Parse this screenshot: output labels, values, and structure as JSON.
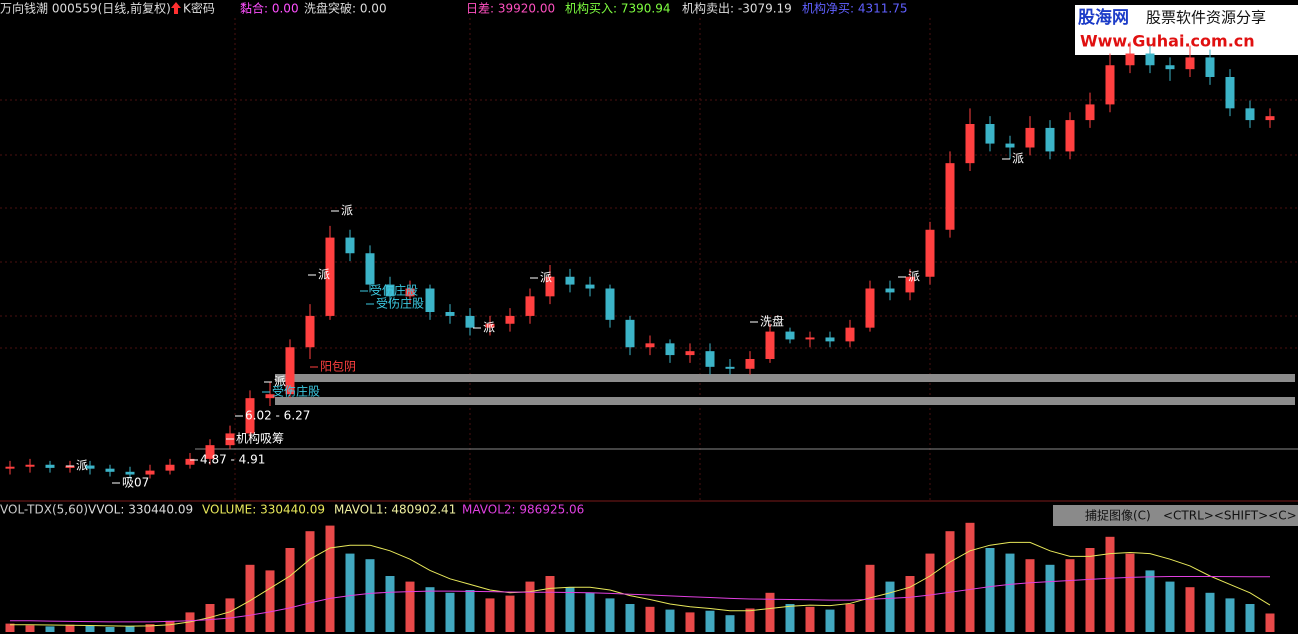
{
  "header": {
    "stock": "万向钱潮 000559(日线,前复权)",
    "kcode": "K密码",
    "indicators": [
      "黏合: 0.00",
      "洗盘突破: 0.00",
      "日差: 39920.00",
      "机构买入: 7390.94",
      "机构卖出: -3079.19",
      "机构净买: 4311.75"
    ]
  },
  "watermark": {
    "site": "股海网",
    "slogan": "股票软件资源分享",
    "url": "Www.Guhai.com.cn"
  },
  "capture_button": {
    "label": "捕捉图像(C)",
    "shortcut": "<CTRL><SHIFT><C>"
  },
  "chart_data": [
    {
      "type": "candlestick",
      "up_color": "#ff4040",
      "down_color": "#3cb4c8",
      "ylim": [
        3.9,
        15.9
      ],
      "open": [
        4.7,
        4.75,
        4.8,
        4.72,
        4.78,
        4.7,
        4.62,
        4.55,
        4.65,
        4.8,
        4.95,
        5.3,
        5.6,
        6.5,
        6.6,
        7.8,
        8.6,
        10.6,
        10.2,
        9.4,
        9.1,
        9.3,
        8.7,
        8.6,
        8.3,
        8.4,
        8.6,
        9.1,
        9.6,
        9.4,
        9.3,
        8.5,
        7.8,
        7.9,
        7.6,
        7.7,
        7.3,
        7.25,
        7.5,
        8.2,
        8.0,
        8.05,
        7.95,
        8.3,
        9.3,
        9.2,
        9.6,
        10.8,
        12.5,
        13.5,
        13.0,
        12.9,
        13.4,
        12.8,
        13.6,
        14.0,
        15.0,
        15.3,
        15.0,
        14.9,
        15.2,
        14.7,
        13.9,
        13.6
      ],
      "high": [
        4.9,
        4.95,
        4.9,
        4.9,
        4.9,
        4.8,
        4.75,
        4.8,
        4.95,
        5.1,
        5.45,
        5.8,
        6.7,
        6.9,
        8.0,
        8.9,
        10.9,
        10.8,
        10.4,
        9.6,
        9.5,
        9.4,
        8.9,
        8.8,
        8.6,
        8.8,
        9.3,
        9.9,
        9.8,
        9.6,
        9.4,
        8.6,
        8.1,
        8.0,
        7.9,
        7.9,
        7.5,
        7.7,
        8.4,
        8.3,
        8.2,
        8.2,
        8.5,
        9.5,
        9.5,
        9.8,
        11.0,
        12.8,
        13.9,
        13.7,
        13.2,
        13.7,
        13.6,
        13.8,
        14.3,
        15.3,
        15.6,
        15.5,
        15.2,
        15.5,
        15.4,
        14.9,
        14.1,
        13.9
      ],
      "low": [
        4.55,
        4.6,
        4.6,
        4.6,
        4.55,
        4.5,
        4.45,
        4.45,
        4.55,
        4.7,
        4.8,
        5.2,
        5.5,
        6.3,
        6.5,
        7.5,
        8.5,
        10.0,
        9.2,
        8.9,
        8.9,
        8.5,
        8.4,
        8.1,
        8.1,
        8.2,
        8.4,
        8.9,
        9.2,
        9.1,
        8.3,
        7.6,
        7.6,
        7.4,
        7.4,
        7.1,
        7.1,
        7.1,
        7.4,
        7.9,
        7.8,
        7.8,
        7.8,
        8.2,
        9.0,
        9.0,
        9.4,
        10.6,
        12.3,
        12.8,
        12.6,
        12.7,
        12.6,
        12.6,
        13.4,
        13.8,
        14.8,
        14.8,
        14.6,
        14.7,
        14.5,
        13.7,
        13.4,
        13.4
      ],
      "close": [
        4.75,
        4.8,
        4.72,
        4.78,
        4.7,
        4.62,
        4.55,
        4.65,
        4.8,
        4.95,
        5.3,
        5.6,
        6.5,
        6.6,
        7.8,
        8.6,
        10.6,
        10.2,
        9.4,
        9.1,
        9.3,
        8.7,
        8.6,
        8.3,
        8.4,
        8.6,
        9.1,
        9.6,
        9.4,
        9.3,
        8.5,
        7.8,
        7.9,
        7.6,
        7.7,
        7.3,
        7.25,
        7.5,
        8.2,
        8.0,
        8.05,
        7.95,
        8.3,
        9.3,
        9.2,
        9.6,
        10.8,
        12.5,
        13.5,
        13.0,
        12.9,
        13.4,
        12.8,
        13.6,
        14.0,
        15.0,
        15.3,
        15.0,
        14.9,
        15.2,
        14.7,
        13.9,
        13.6,
        13.7
      ],
      "annotations": [
        "派",
        "派",
        "派",
        "派",
        "派",
        "派",
        "派",
        "派",
        "阳包阴",
        "受伤庄股",
        "受伤庄股",
        "受伤庄股",
        "6.02 - 6.27",
        "4.87 - 4.91",
        "机构吸筹",
        "洗盘",
        "吸07"
      ]
    },
    {
      "type": "bar",
      "title": "VOL-TDX(5,60)",
      "readout": "VVOL: 330440.09",
      "ylim": [
        0,
        2000000
      ],
      "series": [
        {
          "name": "VOLUME: 330440.09",
          "up_color": "#e84a4a",
          "down_color": "#42a8c0",
          "values": [
            150000,
            120000,
            100000,
            130000,
            110000,
            90000,
            100000,
            140000,
            200000,
            350000,
            500000,
            600000,
            1200000,
            1100000,
            1500000,
            1800000,
            1900000,
            1400000,
            1300000,
            1000000,
            900000,
            800000,
            700000,
            750000,
            600000,
            650000,
            900000,
            1000000,
            800000,
            700000,
            600000,
            500000,
            450000,
            400000,
            350000,
            380000,
            300000,
            420000,
            700000,
            500000,
            450000,
            400000,
            500000,
            1200000,
            900000,
            1000000,
            1400000,
            1800000,
            1950000,
            1500000,
            1400000,
            1300000,
            1200000,
            1300000,
            1500000,
            1700000,
            1400000,
            1100000,
            900000,
            800000,
            700000,
            600000,
            500000,
            330440.09
          ]
        },
        {
          "name": "MAVOL1: 480902.41",
          "color": "#e8e85a",
          "values": [
            130000,
            130000,
            125000,
            120000,
            115000,
            110000,
            105000,
            110000,
            130000,
            180000,
            260000,
            360000,
            560000,
            780000,
            1000000,
            1300000,
            1500000,
            1550000,
            1550000,
            1450000,
            1300000,
            1100000,
            950000,
            850000,
            750000,
            700000,
            720000,
            780000,
            800000,
            800000,
            750000,
            650000,
            580000,
            500000,
            450000,
            420000,
            380000,
            380000,
            420000,
            460000,
            480000,
            470000,
            510000,
            610000,
            700000,
            800000,
            1000000,
            1250000,
            1450000,
            1550000,
            1600000,
            1600000,
            1450000,
            1350000,
            1350000,
            1400000,
            1420000,
            1400000,
            1300000,
            1180000,
            1000000,
            850000,
            700000,
            480902.41
          ]
        },
        {
          "name": "MAVOL2: 986925.06",
          "color": "#e040e0",
          "values": [
            200000,
            200000,
            195000,
            190000,
            185000,
            180000,
            180000,
            180000,
            190000,
            200000,
            220000,
            250000,
            300000,
            360000,
            430000,
            520000,
            600000,
            650000,
            690000,
            710000,
            720000,
            730000,
            730000,
            725000,
            720000,
            715000,
            710000,
            710000,
            705000,
            700000,
            690000,
            675000,
            660000,
            645000,
            630000,
            615000,
            600000,
            590000,
            585000,
            580000,
            575000,
            570000,
            570000,
            585000,
            600000,
            620000,
            660000,
            710000,
            760000,
            810000,
            850000,
            880000,
            900000,
            920000,
            940000,
            960000,
            975000,
            985000,
            990000,
            990000,
            990000,
            988000,
            987000,
            986925.06
          ]
        }
      ]
    }
  ]
}
